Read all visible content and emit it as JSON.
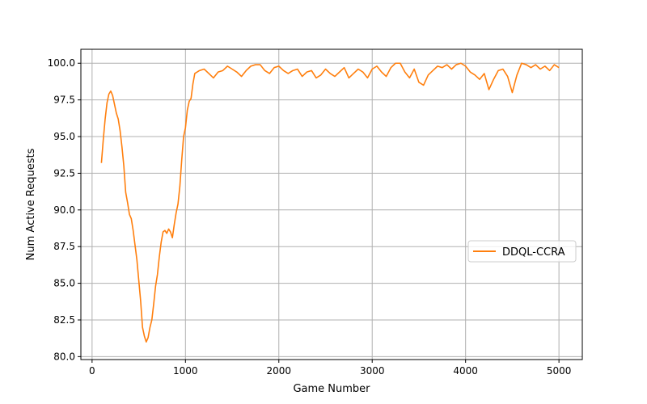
{
  "chart_data": {
    "type": "line",
    "title": "",
    "xlabel": "Game Number",
    "ylabel": "Num Active Requests",
    "xlim": [
      -120,
      5250
    ],
    "ylim": [
      79.8,
      100.95
    ],
    "xticks": [
      0,
      1000,
      2000,
      3000,
      4000,
      5000
    ],
    "xtick_labels": [
      "0",
      "1000",
      "2000",
      "3000",
      "4000",
      "5000"
    ],
    "yticks": [
      80.0,
      82.5,
      85.0,
      87.5,
      90.0,
      92.5,
      95.0,
      97.5,
      100.0
    ],
    "ytick_labels": [
      "80.0",
      "82.5",
      "85.0",
      "87.5",
      "90.0",
      "92.5",
      "95.0",
      "97.5",
      "100.0"
    ],
    "grid": true,
    "legend_position": "center-right",
    "series": [
      {
        "name": "DDQL-CCRA",
        "color": "#ff7f0e",
        "x": [
          100,
          120,
          140,
          160,
          180,
          200,
          220,
          240,
          260,
          280,
          300,
          320,
          340,
          360,
          380,
          400,
          420,
          440,
          460,
          480,
          500,
          520,
          540,
          560,
          580,
          600,
          620,
          640,
          660,
          680,
          700,
          720,
          740,
          760,
          780,
          800,
          820,
          840,
          860,
          880,
          900,
          920,
          940,
          960,
          980,
          1000,
          1020,
          1040,
          1060,
          1080,
          1100,
          1150,
          1200,
          1250,
          1300,
          1350,
          1400,
          1450,
          1500,
          1550,
          1600,
          1650,
          1700,
          1750,
          1800,
          1850,
          1900,
          1950,
          2000,
          2050,
          2100,
          2150,
          2200,
          2250,
          2300,
          2350,
          2400,
          2450,
          2500,
          2550,
          2600,
          2650,
          2700,
          2750,
          2800,
          2850,
          2900,
          2950,
          3000,
          3050,
          3100,
          3150,
          3200,
          3250,
          3300,
          3350,
          3400,
          3450,
          3500,
          3550,
          3600,
          3650,
          3700,
          3750,
          3800,
          3850,
          3900,
          3950,
          4000,
          4050,
          4100,
          4150,
          4200,
          4250,
          4300,
          4350,
          4400,
          4450,
          4500,
          4550,
          4600,
          4650,
          4700,
          4750,
          4800,
          4850,
          4900,
          4950,
          5000
        ],
        "y": [
          93.2,
          94.8,
          96.2,
          97.3,
          97.9,
          98.1,
          97.8,
          97.2,
          96.6,
          96.2,
          95.4,
          94.3,
          93.0,
          91.2,
          90.5,
          89.7,
          89.4,
          88.6,
          87.6,
          86.6,
          85.2,
          83.8,
          82.0,
          81.4,
          81.0,
          81.3,
          82.0,
          82.5,
          83.6,
          84.8,
          85.6,
          86.8,
          87.8,
          88.5,
          88.6,
          88.4,
          88.7,
          88.5,
          88.1,
          89.0,
          89.8,
          90.4,
          91.6,
          93.4,
          95.0,
          95.6,
          96.8,
          97.4,
          97.6,
          98.6,
          99.3,
          99.5,
          99.6,
          99.3,
          99.0,
          99.4,
          99.5,
          99.8,
          99.6,
          99.4,
          99.1,
          99.5,
          99.8,
          99.9,
          99.9,
          99.5,
          99.3,
          99.7,
          99.8,
          99.5,
          99.3,
          99.5,
          99.6,
          99.1,
          99.4,
          99.5,
          99.0,
          99.2,
          99.6,
          99.3,
          99.1,
          99.4,
          99.7,
          99.0,
          99.3,
          99.6,
          99.4,
          99.0,
          99.6,
          99.8,
          99.4,
          99.1,
          99.7,
          100.0,
          100.0,
          99.4,
          99.0,
          99.6,
          98.7,
          98.5,
          99.2,
          99.5,
          99.8,
          99.7,
          99.9,
          99.6,
          99.9,
          100.0,
          99.8,
          99.4,
          99.2,
          98.9,
          99.3,
          98.2,
          98.9,
          99.5,
          99.6,
          99.1,
          98.0,
          99.2,
          100.0,
          99.9,
          99.7,
          99.9,
          99.6,
          99.8,
          99.5,
          99.9,
          99.7
        ]
      }
    ]
  }
}
